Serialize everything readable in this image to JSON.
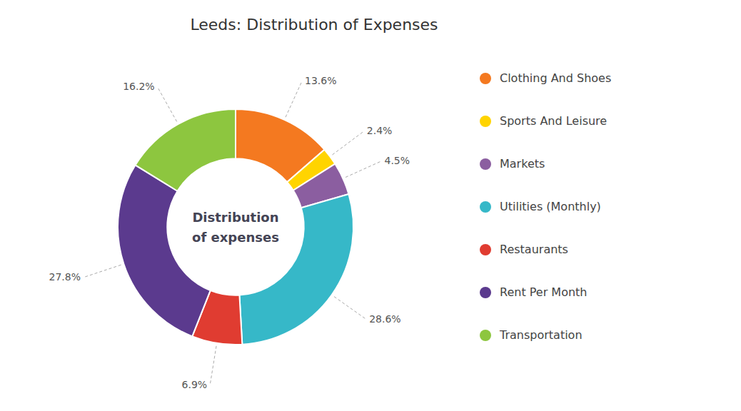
{
  "chart_data": {
    "type": "pie",
    "title": "Leeds: Distribution of Expenses",
    "annotations": [
      "Distribution",
      "of expenses"
    ],
    "categories": [
      "Clothing And Shoes",
      "Sports And Leisure",
      "Markets",
      "Utilities (Monthly)",
      "Restaurants",
      "Rent Per Month",
      "Transportation"
    ],
    "values": [
      13.6,
      2.4,
      4.5,
      28.6,
      6.9,
      27.8,
      16.2
    ],
    "value_labels": [
      "13.6%",
      "2.4%",
      "4.5%",
      "28.6%",
      "6.9%",
      "27.8%",
      "16.2%"
    ],
    "colors": [
      "#f47920",
      "#ffd400",
      "#8b5ea0",
      "#36b8c8",
      "#e03c31",
      "#5b3a8e",
      "#8dc63f"
    ],
    "data_labels": true
  }
}
